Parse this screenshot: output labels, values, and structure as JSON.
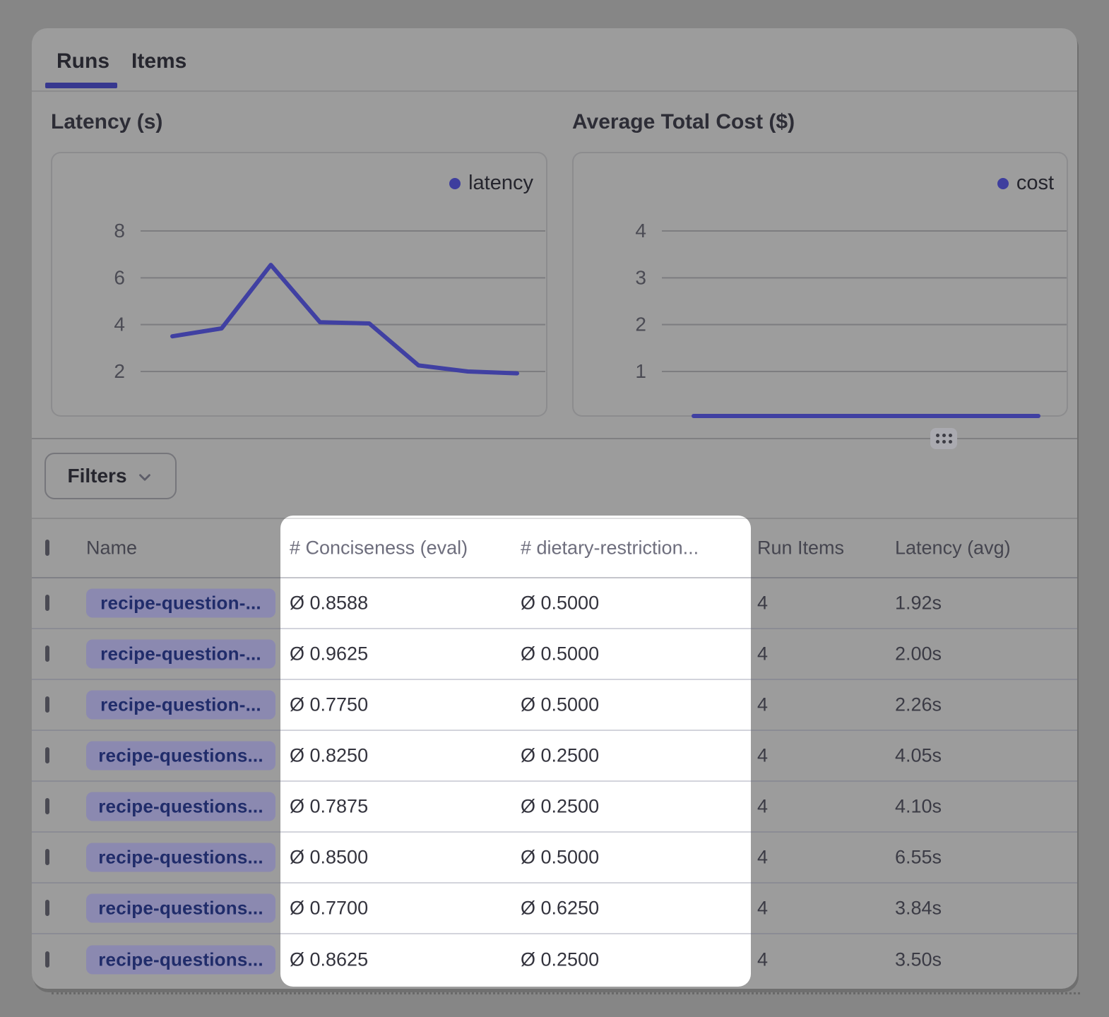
{
  "tabs": {
    "runs": "Runs",
    "items": "Items"
  },
  "charts": [
    {
      "title": "Latency (s)",
      "legend": "latency",
      "y_ticks": [
        8,
        6,
        4,
        2
      ],
      "values": [
        3.5,
        3.84,
        6.55,
        4.1,
        4.05,
        2.26,
        2.0,
        1.92
      ]
    },
    {
      "title": "Average Total Cost ($)",
      "legend": "cost",
      "y_ticks": [
        4,
        3,
        2,
        1
      ],
      "values": [
        0,
        0,
        0,
        0,
        0,
        0,
        0,
        0
      ]
    }
  ],
  "chart_data": [
    {
      "type": "line",
      "title": "Latency (s)",
      "series": [
        {
          "name": "latency",
          "values": [
            3.5,
            3.84,
            6.55,
            4.1,
            4.05,
            2.26,
            2.0,
            1.92
          ]
        }
      ],
      "ylabel": "",
      "xlabel": "",
      "y_tick_labels": [
        8,
        6,
        4,
        2
      ],
      "ylim": [
        1.2,
        9.2
      ],
      "grid": true,
      "legend_position": "top-right",
      "line_color": "#4040a2"
    },
    {
      "type": "line",
      "title": "Average Total Cost ($)",
      "series": [
        {
          "name": "cost",
          "values": [
            0,
            0,
            0,
            0,
            0,
            0,
            0,
            0
          ]
        }
      ],
      "ylabel": "",
      "xlabel": "",
      "y_tick_labels": [
        4,
        3,
        2,
        1
      ],
      "ylim": [
        0,
        4.6
      ],
      "grid": true,
      "legend_position": "top-right",
      "line_color": "#4040a2"
    }
  ],
  "filters": {
    "label": "Filters"
  },
  "table": {
    "columns": [
      "Name",
      "# Conciseness (eval)",
      "# dietary-restriction...",
      "Run Items",
      "Latency (avg)"
    ],
    "rows": [
      {
        "name": "recipe-question-...",
        "conciseness": "Ø 0.8588",
        "dietary": "Ø 0.5000",
        "run_items": "4",
        "latency": "1.92s"
      },
      {
        "name": "recipe-question-...",
        "conciseness": "Ø 0.9625",
        "dietary": "Ø 0.5000",
        "run_items": "4",
        "latency": "2.00s"
      },
      {
        "name": "recipe-question-...",
        "conciseness": "Ø 0.7750",
        "dietary": "Ø 0.5000",
        "run_items": "4",
        "latency": "2.26s"
      },
      {
        "name": "recipe-questions...",
        "conciseness": "Ø 0.8250",
        "dietary": "Ø 0.2500",
        "run_items": "4",
        "latency": "4.05s"
      },
      {
        "name": "recipe-questions...",
        "conciseness": "Ø 0.7875",
        "dietary": "Ø 0.2500",
        "run_items": "4",
        "latency": "4.10s"
      },
      {
        "name": "recipe-questions...",
        "conciseness": "Ø 0.8500",
        "dietary": "Ø 0.5000",
        "run_items": "4",
        "latency": "6.55s"
      },
      {
        "name": "recipe-questions...",
        "conciseness": "Ø 0.7700",
        "dietary": "Ø 0.6250",
        "run_items": "4",
        "latency": "3.84s"
      },
      {
        "name": "recipe-questions...",
        "conciseness": "Ø 0.8625",
        "dietary": "Ø 0.2500",
        "run_items": "4",
        "latency": "3.50s"
      }
    ]
  },
  "colors": {
    "accent_indigo": "#37388f",
    "chart_line": "#4040a2",
    "legend_dot": "#3e3e9e",
    "pill_bg": "#8b89b0",
    "pill_text": "#202c6a",
    "spotlight_bg": "#ffffff"
  }
}
